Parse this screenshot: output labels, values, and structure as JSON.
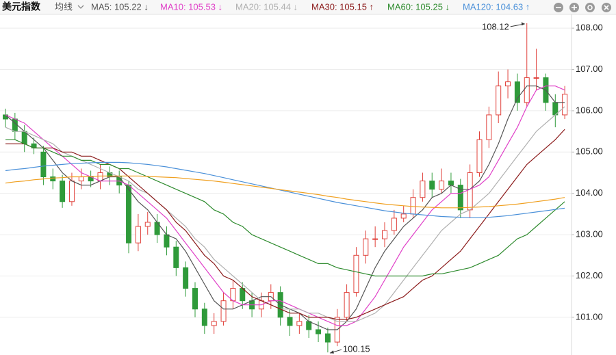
{
  "header": {
    "title": "美元指数",
    "ma_menu": "均线"
  },
  "chart_data": {
    "type": "candlestick",
    "open": [
      105.9,
      105.8,
      105.5,
      105.2,
      105.0,
      104.4,
      104.3,
      103.8,
      104.3,
      104.4,
      104.3,
      104.5,
      104.4,
      104.2,
      102.8,
      103.2,
      103.3,
      103.0,
      102.7,
      102.2,
      101.7,
      101.2,
      100.8,
      100.9,
      101.4,
      101.7,
      101.4,
      101.2,
      101.4,
      101.6,
      101.0,
      100.8,
      100.9,
      100.7,
      100.6,
      100.4,
      101.0,
      101.6,
      102.5,
      102.9,
      102.9,
      103.1,
      103.4,
      103.5,
      103.9,
      104.3,
      104.1,
      104.3,
      104.2,
      103.6,
      104.5,
      105.3,
      105.9,
      106.6,
      106.7,
      106.2,
      106.8,
      106.8,
      106.2,
      105.9
    ],
    "high": [
      106.05,
      105.95,
      105.65,
      105.35,
      105.15,
      104.6,
      104.45,
      104.5,
      104.6,
      104.55,
      104.7,
      104.65,
      104.55,
      104.3,
      103.5,
      103.55,
      103.5,
      103.2,
      102.85,
      102.35,
      101.85,
      101.35,
      101.1,
      101.6,
      101.9,
      101.85,
      101.6,
      101.6,
      101.8,
      101.75,
      101.2,
      101.1,
      101.05,
      100.9,
      100.75,
      101.2,
      101.8,
      102.7,
      103.1,
      103.2,
      103.3,
      103.6,
      103.7,
      104.1,
      104.5,
      104.5,
      104.6,
      104.5,
      104.35,
      104.7,
      105.5,
      106.1,
      106.95,
      107.0,
      106.9,
      108.12,
      107.5,
      106.9,
      106.4,
      106.6
    ],
    "low": [
      105.6,
      105.3,
      105.0,
      104.95,
      104.2,
      104.1,
      103.65,
      103.7,
      104.1,
      104.15,
      104.1,
      104.2,
      104.0,
      102.55,
      102.6,
      103.0,
      102.8,
      102.5,
      102.0,
      101.5,
      101.0,
      100.6,
      100.6,
      100.8,
      101.2,
      101.2,
      101.0,
      101.0,
      101.2,
      100.8,
      100.55,
      100.6,
      100.5,
      100.4,
      100.15,
      100.3,
      100.9,
      101.5,
      102.3,
      102.7,
      102.7,
      103.0,
      103.3,
      103.4,
      103.8,
      103.9,
      104.0,
      104.0,
      103.4,
      103.4,
      104.4,
      105.1,
      105.7,
      106.3,
      106.0,
      106.1,
      106.5,
      106.0,
      105.6,
      105.8
    ],
    "close": [
      105.8,
      105.5,
      105.2,
      105.1,
      104.4,
      104.3,
      103.8,
      104.3,
      104.4,
      104.3,
      104.5,
      104.4,
      104.2,
      102.8,
      103.2,
      103.3,
      103.0,
      102.7,
      102.2,
      101.7,
      101.2,
      100.8,
      100.9,
      101.4,
      101.7,
      101.4,
      101.2,
      101.4,
      101.6,
      101.0,
      100.8,
      100.9,
      100.7,
      100.6,
      100.4,
      101.0,
      101.6,
      102.5,
      102.9,
      102.9,
      103.1,
      103.4,
      103.5,
      103.9,
      104.3,
      104.1,
      104.3,
      104.2,
      103.6,
      104.5,
      105.3,
      105.9,
      106.6,
      106.7,
      106.2,
      106.8,
      106.8,
      106.2,
      105.9,
      106.4
    ],
    "up_color": "#e0403a",
    "down_color": "#2f9a3a",
    "series": [
      {
        "name": "MA5: 105.22 ↓",
        "color": "#555555",
        "values": [
          105.9,
          105.7,
          105.5,
          105.3,
          105.1,
          104.8,
          104.5,
          104.3,
          104.2,
          104.2,
          104.3,
          104.4,
          104.4,
          104.1,
          103.8,
          103.6,
          103.3,
          103.0,
          102.9,
          102.6,
          102.2,
          101.8,
          101.4,
          101.2,
          101.2,
          101.3,
          101.4,
          101.5,
          101.5,
          101.3,
          101.2,
          101.1,
          100.9,
          100.8,
          100.7,
          100.7,
          100.9,
          101.2,
          101.7,
          102.2,
          102.6,
          102.9,
          103.2,
          103.4,
          103.6,
          103.9,
          104.0,
          104.2,
          104.1,
          104.1,
          104.3,
          104.7,
          105.2,
          105.8,
          106.3,
          106.6,
          106.6,
          106.5,
          106.2,
          106.2
        ]
      },
      {
        "name": "MA10: 105.53 ↓",
        "color": "#e040c8",
        "values": [
          105.9,
          105.8,
          105.7,
          105.5,
          105.3,
          105.1,
          104.9,
          104.7,
          104.5,
          104.4,
          104.3,
          104.3,
          104.3,
          104.2,
          104.0,
          103.8,
          103.6,
          103.4,
          103.1,
          102.8,
          102.5,
          102.2,
          101.9,
          101.6,
          101.4,
          101.3,
          101.3,
          101.3,
          101.4,
          101.4,
          101.3,
          101.2,
          101.1,
          101.0,
          100.9,
          100.8,
          100.8,
          100.9,
          101.2,
          101.5,
          101.9,
          102.3,
          102.7,
          103.0,
          103.3,
          103.6,
          103.8,
          104.0,
          104.0,
          104.1,
          104.2,
          104.4,
          104.8,
          105.2,
          105.6,
          106.1,
          106.5,
          106.6,
          106.6,
          106.5
        ]
      },
      {
        "name": "MA20: 105.44 ↓",
        "color": "#b0b0b0",
        "values": [
          105.6,
          105.5,
          105.5,
          105.4,
          105.3,
          105.2,
          105.0,
          104.9,
          104.8,
          104.7,
          104.6,
          104.5,
          104.4,
          104.3,
          104.1,
          104.0,
          103.8,
          103.6,
          103.4,
          103.2,
          102.9,
          102.7,
          102.4,
          102.2,
          102.0,
          101.8,
          101.6,
          101.4,
          101.3,
          101.2,
          101.2,
          101.2,
          101.1,
          101.1,
          101.0,
          100.9,
          100.9,
          100.9,
          101.0,
          101.1,
          101.3,
          101.6,
          101.9,
          102.2,
          102.5,
          102.8,
          103.1,
          103.3,
          103.5,
          103.6,
          103.8,
          104.0,
          104.3,
          104.6,
          104.9,
          105.2,
          105.5,
          105.7,
          105.9,
          106.1
        ]
      },
      {
        "name": "MA30: 105.15 ↑",
        "color": "#8b1a1a",
        "values": [
          105.2,
          105.2,
          105.2,
          105.1,
          105.1,
          105.1,
          105.0,
          105.0,
          104.9,
          104.9,
          104.8,
          104.7,
          104.6,
          104.4,
          104.2,
          104.0,
          103.8,
          103.6,
          103.3,
          103.1,
          102.8,
          102.5,
          102.3,
          102.0,
          101.9,
          101.7,
          101.5,
          101.4,
          101.3,
          101.2,
          101.1,
          101.1,
          101.0,
          101.0,
          101.0,
          100.95,
          100.95,
          101.0,
          101.1,
          101.2,
          101.3,
          101.4,
          101.5,
          101.7,
          101.9,
          102.0,
          102.2,
          102.4,
          102.6,
          102.9,
          103.2,
          103.5,
          103.8,
          104.1,
          104.4,
          104.7,
          104.9,
          105.1,
          105.3,
          105.55
        ]
      },
      {
        "name": "MA60: 105.25 ↓",
        "color": "#2e8b2e",
        "values": [
          105.3,
          105.3,
          105.2,
          105.1,
          105.1,
          105.0,
          104.9,
          104.9,
          104.8,
          104.8,
          104.7,
          104.7,
          104.6,
          104.6,
          104.5,
          104.4,
          104.3,
          104.2,
          104.1,
          104.0,
          103.9,
          103.8,
          103.6,
          103.5,
          103.3,
          103.2,
          103.0,
          102.9,
          102.8,
          102.7,
          102.6,
          102.5,
          102.4,
          102.3,
          102.3,
          102.2,
          102.15,
          102.1,
          102.05,
          102.0,
          102.0,
          102.0,
          102.0,
          102.0,
          102.0,
          102.05,
          102.05,
          102.1,
          102.15,
          102.2,
          102.3,
          102.4,
          102.5,
          102.7,
          102.9,
          103.0,
          103.2,
          103.4,
          103.6,
          103.8
        ]
      },
      {
        "name": "MA120: 104.63 ↑",
        "color": "#4a90d9",
        "values": [
          104.55,
          104.58,
          104.6,
          104.63,
          104.66,
          104.68,
          104.7,
          104.72,
          104.73,
          104.74,
          104.75,
          104.75,
          104.75,
          104.74,
          104.72,
          104.7,
          104.67,
          104.64,
          104.6,
          104.56,
          104.52,
          104.48,
          104.43,
          104.38,
          104.33,
          104.28,
          104.23,
          104.18,
          104.13,
          104.08,
          104.03,
          103.98,
          103.93,
          103.88,
          103.83,
          103.78,
          103.74,
          103.7,
          103.66,
          103.62,
          103.58,
          103.55,
          103.52,
          103.5,
          103.48,
          103.46,
          103.44,
          103.43,
          103.42,
          103.41,
          103.41,
          103.42,
          103.44,
          103.46,
          103.49,
          103.52,
          103.55,
          103.58,
          103.61,
          103.64
        ]
      },
      {
        "color": "#f0a020",
        "values": [
          104.25,
          104.28,
          104.3,
          104.33,
          104.35,
          104.37,
          104.38,
          104.4,
          104.4,
          104.41,
          104.42,
          104.42,
          104.42,
          104.42,
          104.42,
          104.41,
          104.4,
          104.39,
          104.38,
          104.36,
          104.34,
          104.32,
          104.3,
          104.27,
          104.24,
          104.21,
          104.18,
          104.15,
          104.12,
          104.09,
          104.06,
          104.03,
          104.0,
          103.97,
          103.93,
          103.9,
          103.86,
          103.83,
          103.8,
          103.77,
          103.74,
          103.72,
          103.7,
          103.68,
          103.67,
          103.66,
          103.65,
          103.65,
          103.65,
          103.66,
          103.67,
          103.68,
          103.7,
          103.72,
          103.74,
          103.77,
          103.8,
          103.83,
          103.86,
          103.9
        ]
      }
    ],
    "ylim": [
      100.12,
      108.35
    ],
    "yticks": [
      {
        "value": 101,
        "label": "101.00"
      },
      {
        "value": 102,
        "label": "102.00"
      },
      {
        "value": 103,
        "label": "103.00"
      },
      {
        "value": 104,
        "label": "104.00"
      },
      {
        "value": 105,
        "label": "105.00"
      },
      {
        "value": 106,
        "label": "106.00"
      },
      {
        "value": 107,
        "label": "107.00"
      },
      {
        "value": 108,
        "label": "108.00"
      }
    ],
    "grid": true,
    "annotations": [
      {
        "value": 108.12
      },
      {
        "value": 100.15
      }
    ]
  }
}
